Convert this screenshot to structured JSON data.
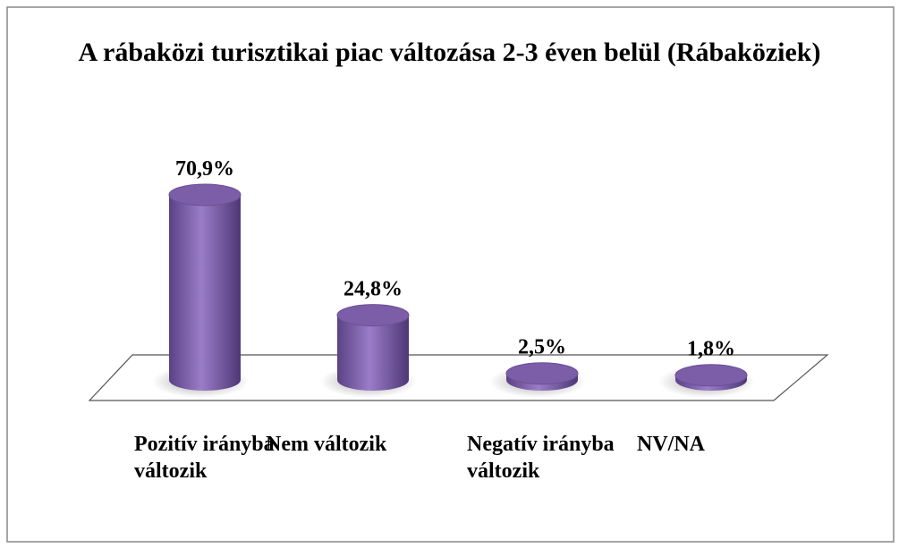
{
  "chart_data": {
    "type": "bar3d",
    "title": "A rábaközi turisztikai piac változása 2-3 éven belül (Rábaköziek)",
    "categories": [
      "Pozitív irányba változik",
      "Nem változik",
      "Negatív irányba változik",
      "NV/NA"
    ],
    "values": [
      70.9,
      24.8,
      2.5,
      1.8
    ],
    "value_labels": [
      "70,9%",
      "24,8%",
      "2,5%",
      "1,8%"
    ],
    "color": "#7b5ea7"
  }
}
